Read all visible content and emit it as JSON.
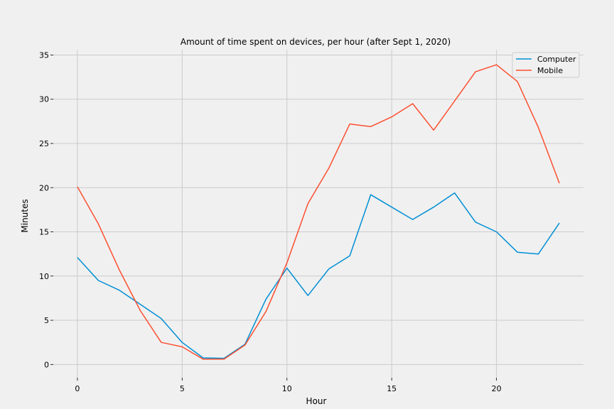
{
  "chart_data": {
    "type": "line",
    "title": "Amount of time spent on devices, per hour (after Sept 1, 2020)",
    "xlabel": "Hour",
    "ylabel": "Minutes",
    "xlim": [
      -1.15,
      24.15
    ],
    "ylim": [
      -1.5,
      35.6
    ],
    "xticks": [
      0,
      5,
      10,
      15,
      20
    ],
    "yticks": [
      0,
      5,
      10,
      15,
      20,
      25,
      30,
      35
    ],
    "grid": true,
    "legend_position": "top-right",
    "x": [
      0,
      1,
      2,
      3,
      4,
      5,
      6,
      7,
      8,
      9,
      10,
      11,
      12,
      13,
      14,
      15,
      16,
      17,
      18,
      19,
      20,
      21,
      22,
      23
    ],
    "series": [
      {
        "name": "Computer",
        "color": "#008fd5",
        "values": [
          12.1,
          9.5,
          8.4,
          6.8,
          5.2,
          2.5,
          0.75,
          0.7,
          2.3,
          7.4,
          10.9,
          7.8,
          10.8,
          12.3,
          19.2,
          17.8,
          16.4,
          17.8,
          19.4,
          16.1,
          15.0,
          12.7,
          12.5,
          16.0
        ]
      },
      {
        "name": "Mobile",
        "color": "#fc4f30",
        "values": [
          20.1,
          15.9,
          10.7,
          6.1,
          2.5,
          2.0,
          0.6,
          0.6,
          2.2,
          6.0,
          11.5,
          18.2,
          22.2,
          27.2,
          26.9,
          28.0,
          29.5,
          26.5,
          29.8,
          33.1,
          33.9,
          32.0,
          26.8,
          20.5
        ]
      }
    ]
  }
}
